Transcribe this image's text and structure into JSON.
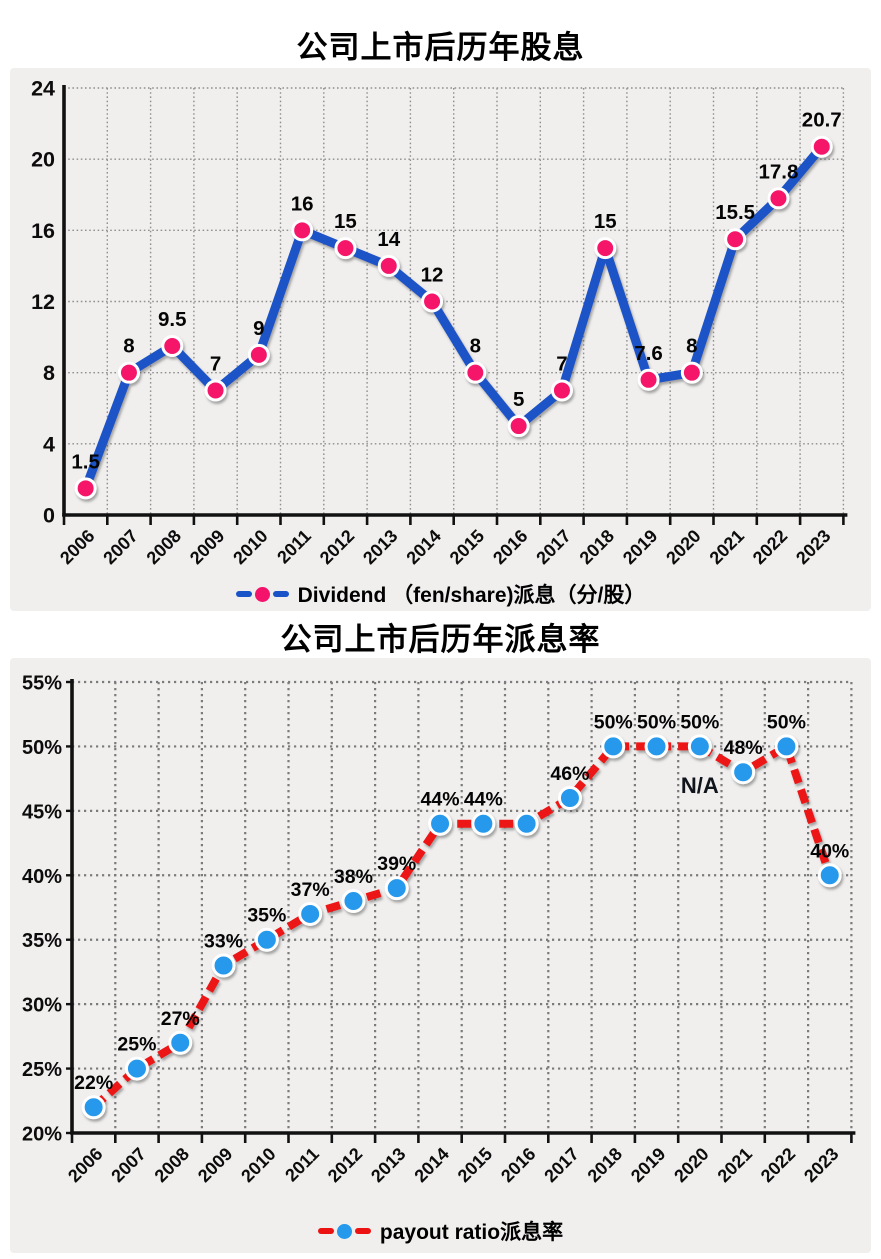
{
  "page": {
    "background_color": "#ffffff",
    "panel_color": "#f0efee"
  },
  "chart_data": [
    {
      "type": "line",
      "title": "公司上市后历年股息",
      "legend": "Dividend （fen/share)派息（分/股）",
      "categories": [
        "2006",
        "2007",
        "2008",
        "2009",
        "2010",
        "2011",
        "2012",
        "2013",
        "2014",
        "2015",
        "2016",
        "2017",
        "2018",
        "2019",
        "2020",
        "2021",
        "2022",
        "2023"
      ],
      "values": [
        1.5,
        8,
        9.5,
        7,
        9,
        16,
        15,
        14,
        12,
        8,
        5,
        7,
        15,
        7.6,
        8,
        15.5,
        17.8,
        20.7
      ],
      "point_labels": [
        "1.5",
        "8",
        "9.5",
        "7",
        "9",
        "16",
        "15",
        "14",
        "12",
        "8",
        "5",
        "7",
        "15",
        "7.6",
        "8",
        "15.5",
        "17.8",
        "20.7"
      ],
      "ylim": [
        0,
        24
      ],
      "y_tick_values": [
        0,
        4,
        8,
        12,
        16,
        20,
        24
      ],
      "y_tick_labels": [
        "0",
        "4",
        "8",
        "12",
        "16",
        "20",
        "24"
      ],
      "line_color": "#1a52c7",
      "line_style": "solid",
      "marker_color": "#f5126a",
      "grid": "dotted",
      "legend_position": "bottom",
      "annotations": []
    },
    {
      "type": "line",
      "title": "公司上市后历年派息率",
      "legend": "payout ratio派息率",
      "categories": [
        "2006",
        "2007",
        "2008",
        "2009",
        "2010",
        "2011",
        "2012",
        "2013",
        "2014",
        "2015",
        "2016",
        "2017",
        "2018",
        "2019",
        "2020",
        "2021",
        "2022",
        "2023"
      ],
      "values": [
        22,
        25,
        27,
        33,
        35,
        37,
        38,
        39,
        44,
        44,
        44,
        46,
        50,
        50,
        50,
        48,
        50,
        40
      ],
      "point_labels": [
        "22%",
        "25%",
        "27%",
        "33%",
        "35%",
        "37%",
        "38%",
        "39%",
        "44%",
        "44%",
        "",
        "46%",
        "50%",
        "50%",
        "50%",
        "48%",
        "50%",
        "40%"
      ],
      "ylim": [
        20,
        55
      ],
      "y_tick_values": [
        20,
        25,
        30,
        35,
        40,
        45,
        50,
        55
      ],
      "y_tick_labels": [
        "20%",
        "25%",
        "30%",
        "35%",
        "40%",
        "45%",
        "50%",
        "55%"
      ],
      "line_color": "#ec1212",
      "line_style": "dashed",
      "marker_color": "#2599ec",
      "grid": "dotted",
      "legend_position": "bottom",
      "annotations": [
        {
          "text": "N/A",
          "category": "2020",
          "value": 46.4
        }
      ]
    }
  ]
}
